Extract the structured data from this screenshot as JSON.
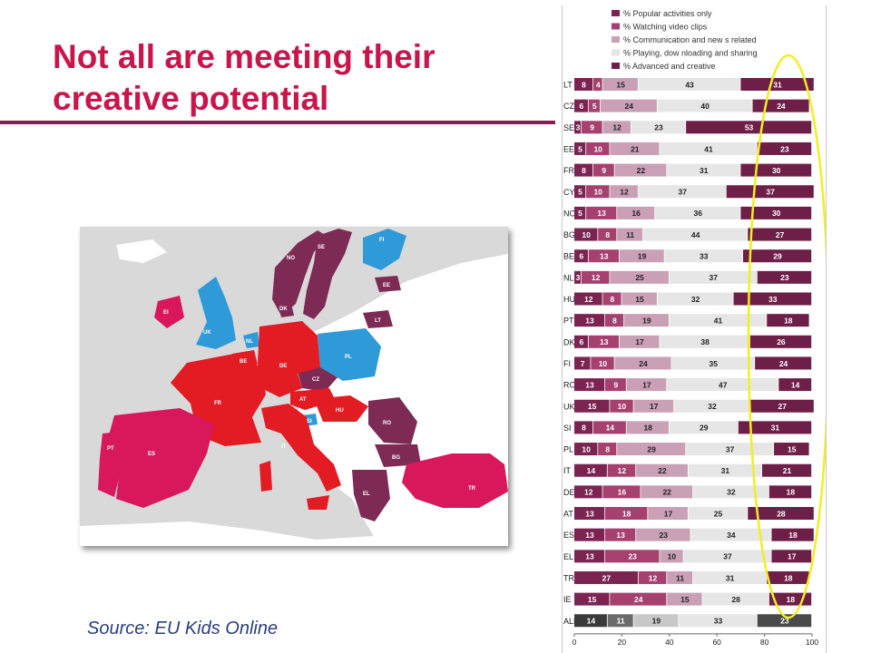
{
  "slide": {
    "title": "Not all are meeting their creative potential",
    "source": "Source: EU Kids Online"
  },
  "colors": {
    "title": "#c8164b",
    "rule": "#8a2050",
    "source": "#2a3f7a",
    "highlight_ellipse": "#f2ee22",
    "map_water": "#d9d9d9",
    "map_other_land": "#ffffff",
    "map_group_plum": "#7d2b55",
    "map_group_blue": "#2e9ad8",
    "map_group_red": "#e31b23",
    "map_group_pink": "#d8175c"
  },
  "map": {
    "labels": {
      "SE": "SE",
      "NO": "NO",
      "FI": "FI",
      "EE": "EE",
      "LT": "LT",
      "DK": "DK",
      "UK": "UK",
      "EI": "EI",
      "NL": "NL",
      "BE": "BE",
      "DE": "DE",
      "PL": "PL",
      "CZ": "CZ",
      "AT": "AT",
      "HU": "HU",
      "SI": "SI",
      "FR": "FR",
      "IT": "IT",
      "PT": "PT",
      "ES": "ES",
      "RO": "RO",
      "BG": "BG",
      "EL": "EL",
      "TR": "TR"
    }
  },
  "chart_data": {
    "type": "bar",
    "orientation": "horizontal",
    "stacked": true,
    "xlim": [
      0,
      100
    ],
    "x_ticks": [
      "0",
      "20",
      "40",
      "60",
      "80",
      "100"
    ],
    "categories": [
      "LT",
      "CZ",
      "SE",
      "EE",
      "FR",
      "CY",
      "NO",
      "BG",
      "BE",
      "NL",
      "HU",
      "PT",
      "DK",
      "FI",
      "RO",
      "UK",
      "SI",
      "PL",
      "IT",
      "DE",
      "AT",
      "ES",
      "EL",
      "TR",
      "IE",
      "ALL"
    ],
    "series": [
      {
        "name": "% Popular activities only",
        "color": "#7b2452",
        "values": [
          8,
          6,
          3,
          5,
          8,
          5,
          5,
          10,
          6,
          3,
          12,
          13,
          6,
          7,
          13,
          15,
          8,
          10,
          14,
          12,
          13,
          13,
          13,
          27,
          15,
          14
        ]
      },
      {
        "name": "% Watching video clips",
        "color": "#a5406f",
        "values": [
          4,
          5,
          9,
          10,
          9,
          10,
          13,
          8,
          13,
          12,
          8,
          8,
          13,
          10,
          9,
          10,
          14,
          8,
          12,
          16,
          18,
          13,
          23,
          12,
          24,
          11
        ]
      },
      {
        "name": "% Communication and new s related",
        "color": "#c9a0b6",
        "values": [
          15,
          24,
          12,
          21,
          22,
          12,
          16,
          11,
          19,
          25,
          15,
          19,
          17,
          24,
          17,
          17,
          18,
          29,
          22,
          22,
          17,
          23,
          10,
          11,
          15,
          19
        ]
      },
      {
        "name": "% Playing, dow nloading and sharing",
        "color": "#e6e6e6",
        "values": [
          43,
          40,
          23,
          41,
          31,
          37,
          36,
          44,
          33,
          37,
          32,
          41,
          38,
          35,
          47,
          32,
          29,
          37,
          31,
          32,
          25,
          34,
          37,
          31,
          28,
          33
        ]
      },
      {
        "name": "% Advanced and creative",
        "color": "#6e1f48",
        "values": [
          31,
          24,
          53,
          23,
          30,
          37,
          30,
          27,
          29,
          23,
          33,
          18,
          26,
          24,
          14,
          27,
          31,
          15,
          21,
          18,
          28,
          18,
          17,
          18,
          18,
          23
        ]
      }
    ],
    "value_labels": [
      [
        "8",
        "4",
        "15",
        "43",
        "31"
      ],
      [
        "6",
        "5",
        "24",
        "40",
        "24"
      ],
      [
        "3",
        "9",
        "12",
        "23",
        "53"
      ],
      [
        "5",
        "10",
        "21",
        "41",
        "23"
      ],
      [
        "8",
        "9",
        "22",
        "31",
        "30"
      ],
      [
        "5",
        "10",
        "12",
        "37",
        "37"
      ],
      [
        "5",
        "13",
        "16",
        "36",
        "30"
      ],
      [
        "10",
        "8",
        "11",
        "44",
        "27"
      ],
      [
        "6",
        "13",
        "19",
        "33",
        "29"
      ],
      [
        "3",
        "12",
        "25",
        "37",
        "23"
      ],
      [
        "12",
        "8",
        "15",
        "32",
        "33"
      ],
      [
        "13",
        "8",
        "19",
        "41",
        "18"
      ],
      [
        "6",
        "13",
        "17",
        "38",
        "26"
      ],
      [
        "7",
        "10",
        "24",
        "35",
        "24"
      ],
      [
        "13",
        "9",
        "17",
        "47",
        "14"
      ],
      [
        "15",
        "10",
        "17",
        "32",
        "27"
      ],
      [
        "8",
        "14",
        "18",
        "29",
        "31"
      ],
      [
        "10",
        "8",
        "29",
        "37",
        "15"
      ],
      [
        "14",
        "12",
        "22",
        "31",
        "21"
      ],
      [
        "12",
        "16",
        "22",
        "32",
        "18"
      ],
      [
        "13",
        "18",
        "17",
        "25",
        "28"
      ],
      [
        "13",
        "13",
        "23",
        "34",
        "18"
      ],
      [
        "13",
        "23",
        "10",
        "37",
        "17"
      ],
      [
        "27",
        "12",
        "11",
        "31",
        "18"
      ],
      [
        "15",
        "24",
        "15",
        "28",
        "18"
      ],
      [
        "14",
        "11",
        "19",
        "33",
        "23"
      ]
    ],
    "highlight_row_colors": {
      "ALL": [
        "#3a3a3a",
        "#6b6b6b",
        "#c8c8c8",
        "#e6e6e6",
        "#4a4a4a"
      ]
    },
    "legend_position": "top",
    "grid": false,
    "title": "",
    "xlabel": "",
    "ylabel": ""
  }
}
